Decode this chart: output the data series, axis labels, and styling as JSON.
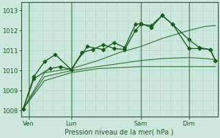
{
  "bg_color": "#cce8dc",
  "plot_bg_color": "#cce8dc",
  "grid_color": "#b0d8c8",
  "line_color": "#1a5c1a",
  "vline_color": "#4a7a50",
  "xlabel": "Pression niveau de la mer( hPa )",
  "ylim": [
    1007.7,
    1013.4
  ],
  "yticks": [
    1008,
    1009,
    1010,
    1011,
    1012,
    1013
  ],
  "xlim": [
    -0.2,
    18.2
  ],
  "day_labels": [
    "Ven",
    "Lun",
    "Sam",
    "Dim"
  ],
  "day_positions": [
    0.5,
    4.5,
    11.0,
    15.5
  ],
  "vline_positions": [
    0.5,
    4.5,
    11.0,
    15.5
  ],
  "series": [
    {
      "x": [
        0,
        1,
        2.5,
        3.5,
        4.5,
        6,
        7.5,
        8.5,
        9.5,
        10.5,
        11.0,
        12,
        13,
        14,
        15.5,
        16.5,
        17.5,
        18
      ],
      "y": [
        1008.1,
        1009.6,
        1010.1,
        1010.2,
        1010.05,
        1011.2,
        1011.05,
        1011.4,
        1011.15,
        1012.3,
        1012.35,
        1012.15,
        1012.75,
        1012.3,
        1011.1,
        1011.1,
        1011.05,
        1010.5
      ],
      "marker": "D",
      "markersize": 2.5,
      "linewidth": 1.0,
      "linestyle": "-",
      "alpha": 1.0
    },
    {
      "x": [
        0,
        1,
        2,
        3,
        4.5,
        5.5,
        6.5,
        7.5,
        8.5,
        9.5,
        10.5,
        11.0,
        12,
        13,
        14,
        15.5,
        16.5,
        17.5,
        18
      ],
      "y": [
        1008.1,
        1009.7,
        1010.45,
        1010.8,
        1010.05,
        1010.9,
        1011.05,
        1011.3,
        1011.1,
        1011.05,
        1012.0,
        1012.3,
        1012.25,
        1012.75,
        1012.3,
        1011.55,
        1011.15,
        1011.05,
        1010.5
      ],
      "marker": "D",
      "markersize": 2.5,
      "linewidth": 1.0,
      "linestyle": "-",
      "alpha": 1.0
    },
    {
      "x": [
        0,
        2,
        4.5,
        7,
        9,
        11,
        13,
        15.5,
        17,
        18
      ],
      "y": [
        1008.1,
        1009.9,
        1010.1,
        1010.5,
        1010.9,
        1011.2,
        1011.6,
        1012.0,
        1012.2,
        1012.25
      ],
      "marker": null,
      "markersize": 0,
      "linewidth": 0.9,
      "linestyle": "-",
      "alpha": 0.8
    },
    {
      "x": [
        0,
        2,
        4.5,
        7,
        9,
        11,
        13,
        15.5,
        17,
        18
      ],
      "y": [
        1008.1,
        1009.7,
        1010.0,
        1010.2,
        1010.35,
        1010.5,
        1010.6,
        1010.65,
        1010.6,
        1010.55
      ],
      "marker": null,
      "markersize": 0,
      "linewidth": 0.9,
      "linestyle": "-",
      "alpha": 0.8
    },
    {
      "x": [
        0,
        2,
        4.5,
        7,
        9,
        11,
        13,
        15.5,
        17,
        18
      ],
      "y": [
        1008.1,
        1009.5,
        1009.9,
        1010.1,
        1010.15,
        1010.2,
        1010.2,
        1010.2,
        1010.2,
        1010.2
      ],
      "marker": null,
      "markersize": 0,
      "linewidth": 0.9,
      "linestyle": "-",
      "alpha": 0.8
    }
  ]
}
